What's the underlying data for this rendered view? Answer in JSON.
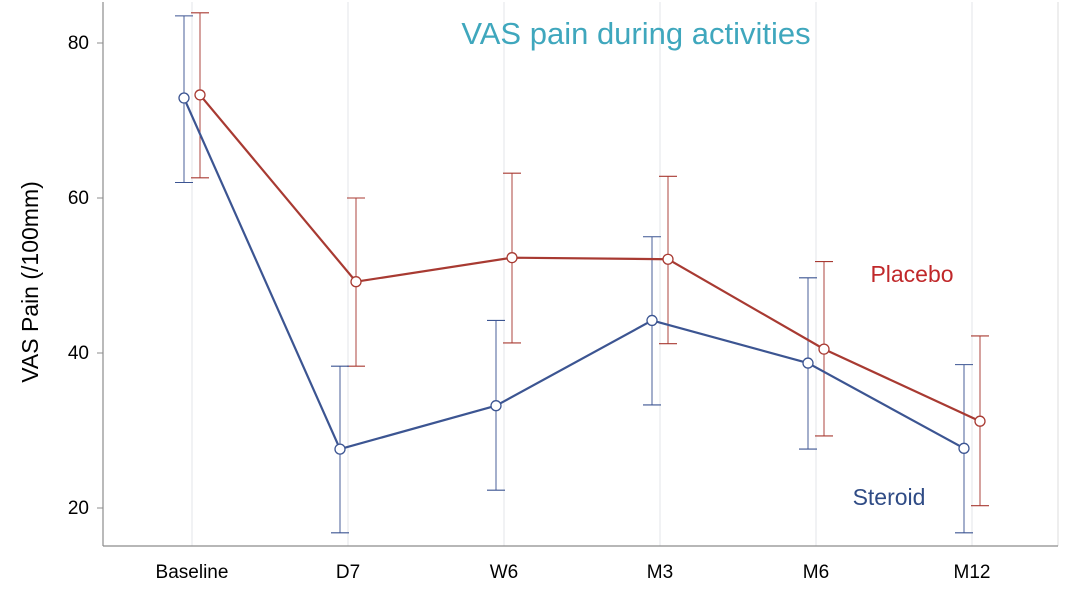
{
  "chart_data": {
    "type": "line",
    "title": "VAS pain during activities",
    "xlabel": "",
    "ylabel": "VAS Pain (/100mm)",
    "categories": [
      "Baseline",
      "D7",
      "W6",
      "M3",
      "M6",
      "M12"
    ],
    "yticks": [
      20,
      40,
      60,
      80
    ],
    "ylim": [
      15,
      85
    ],
    "grid": "vertical",
    "series": [
      {
        "name": "Placebo",
        "color": "#a83a32",
        "label_color": "#c0282a",
        "values": [
          73.3,
          49.2,
          52.3,
          52.1,
          40.5,
          31.2
        ],
        "lower": [
          62.6,
          38.3,
          41.3,
          41.2,
          29.3,
          20.3
        ],
        "upper": [
          83.9,
          60.0,
          63.2,
          62.8,
          51.8,
          42.2
        ]
      },
      {
        "name": "Steroid",
        "color": "#3c5592",
        "label_color": "#2f4b85",
        "values": [
          72.9,
          27.6,
          33.2,
          44.2,
          38.7,
          27.7
        ],
        "lower": [
          62.0,
          16.8,
          22.3,
          33.3,
          27.6,
          16.8
        ],
        "upper": [
          83.5,
          38.3,
          44.2,
          55.0,
          49.7,
          38.5
        ]
      }
    ],
    "title_color": "#3fa7bd"
  }
}
